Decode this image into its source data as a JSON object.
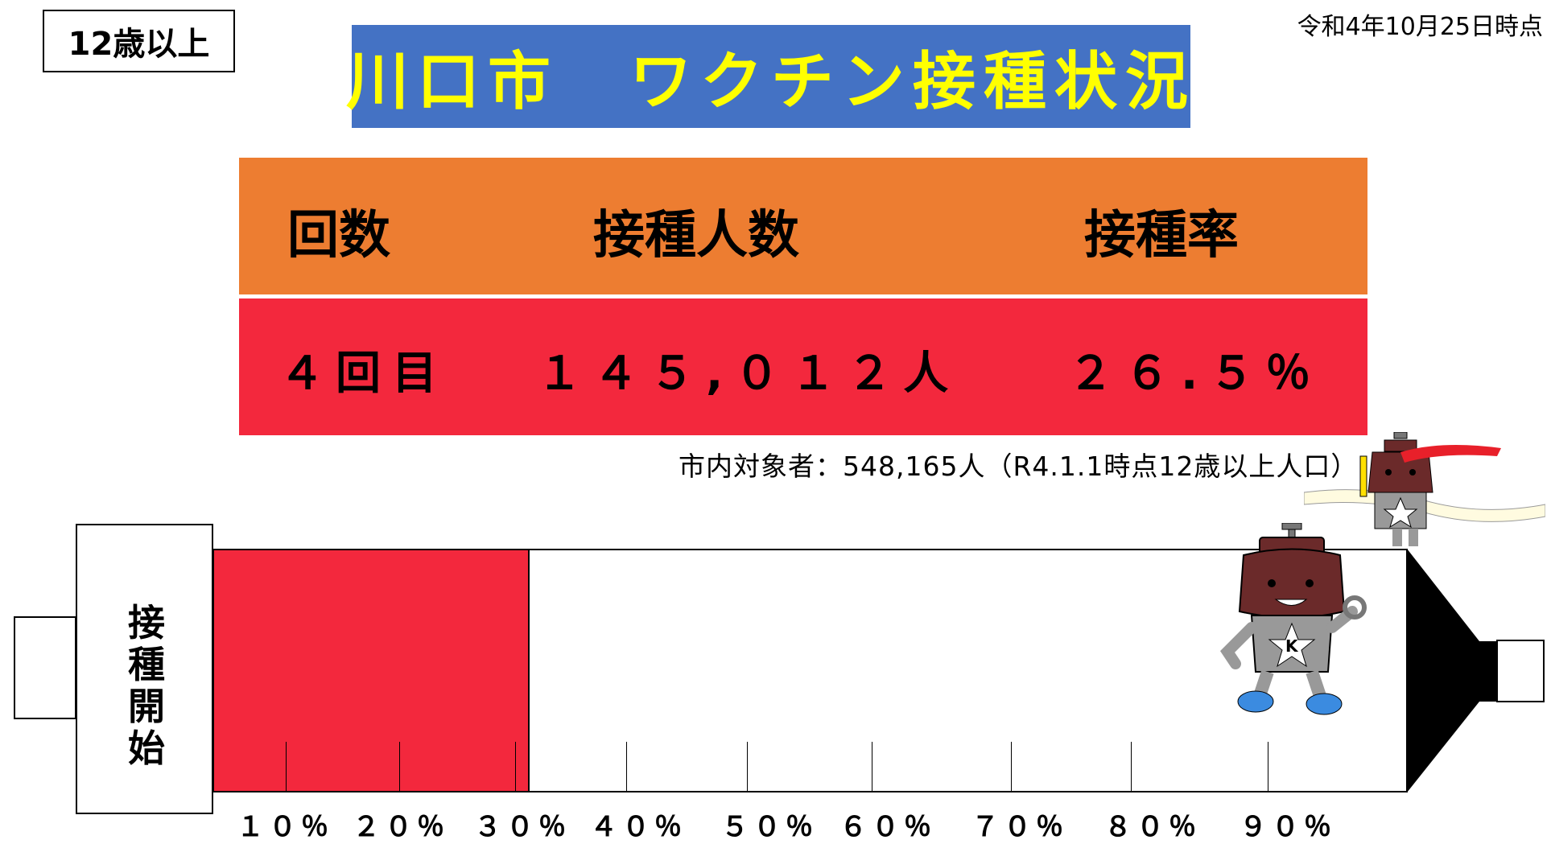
{
  "header": {
    "age_badge": "12歳以上",
    "title": "川口市　ワクチン接種状況",
    "as_of": "令和4年10月25日時点"
  },
  "colors": {
    "title_bg": "#4472c4",
    "title_text": "#ffff00",
    "header_bg": "#ed7d31",
    "row_bg": "#f3283d",
    "fill": "#f3283d"
  },
  "table": {
    "headers": [
      "回数",
      "接種人数",
      "接種率"
    ],
    "rows": [
      [
        "４回目",
        "１４５,０１２人",
        "２６.５％"
      ]
    ]
  },
  "target_note": "市内対象者：548,165人（R4.1.1時点12歳以上人口）",
  "syringe": {
    "start_label": "接種開始",
    "progress_percent": 26.5,
    "tick_labels": [
      "１０％",
      "２０％",
      "３０％",
      "４０％",
      "５０％",
      "６０％",
      "７０％",
      "８０％",
      "９０％"
    ]
  },
  "icons": {
    "main_mascot": "running-kettle-mascot-icon",
    "finish_mascot": "finish-line-mascot-icon"
  }
}
